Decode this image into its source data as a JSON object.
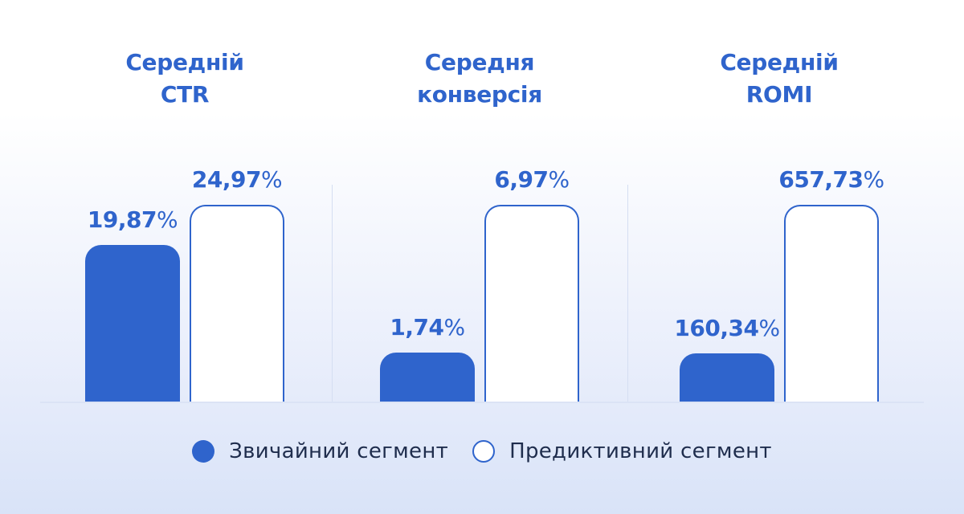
{
  "chart_data": {
    "type": "bar",
    "layout": "grouped-independent-scale",
    "grid": false,
    "legend_placement": "bottom",
    "colors": {
      "regular": "#2f64cc",
      "predictive": "#ffffff",
      "accent": "#2f64cc"
    },
    "series": [
      {
        "name": "Звичайний сегмент",
        "key": "regular"
      },
      {
        "name": "Предиктивний сегмент",
        "key": "predictive"
      }
    ],
    "groups": [
      {
        "title_lines": [
          "Середній",
          "CTR"
        ],
        "values": {
          "regular": 19.87,
          "predictive": 24.97
        },
        "labels": {
          "regular": "19,87",
          "predictive": "24,97"
        },
        "unit": "%"
      },
      {
        "title_lines": [
          "Середня",
          "конверсія"
        ],
        "values": {
          "regular": 1.74,
          "predictive": 6.97
        },
        "labels": {
          "regular": "1,74",
          "predictive": "6,97"
        },
        "unit": "%"
      },
      {
        "title_lines": [
          "Середній",
          "ROMI"
        ],
        "values": {
          "regular": 160.34,
          "predictive": 657.73
        },
        "labels": {
          "regular": "160,34",
          "predictive": "657,73"
        },
        "unit": "%"
      }
    ]
  },
  "legend": {
    "regular_label": "Звичайний сегмент",
    "predictive_label": "Предиктивний сегмент"
  }
}
